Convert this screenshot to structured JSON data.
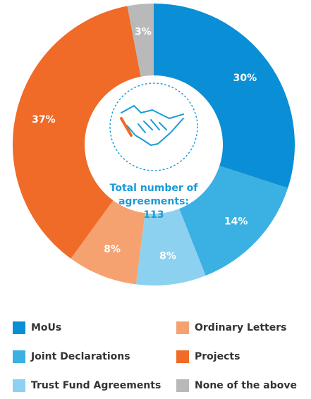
{
  "chart_data": {
    "type": "pie",
    "categories": [
      "MoUs",
      "Joint Declarations",
      "Trust Fund Agreements",
      "Ordinary Letters",
      "Projects",
      "None of the above"
    ],
    "values": [
      30,
      14,
      8,
      8,
      37,
      3
    ],
    "value_labels": [
      "30%",
      "14%",
      "8%",
      "8%",
      "37%",
      "3%"
    ],
    "colors": [
      "#0a8fd6",
      "#3bb0e3",
      "#8dd1f0",
      "#f5a270",
      "#ef6b27",
      "#b9b9b9"
    ],
    "center_label": "Total number of agreements:",
    "total": 113
  }
}
